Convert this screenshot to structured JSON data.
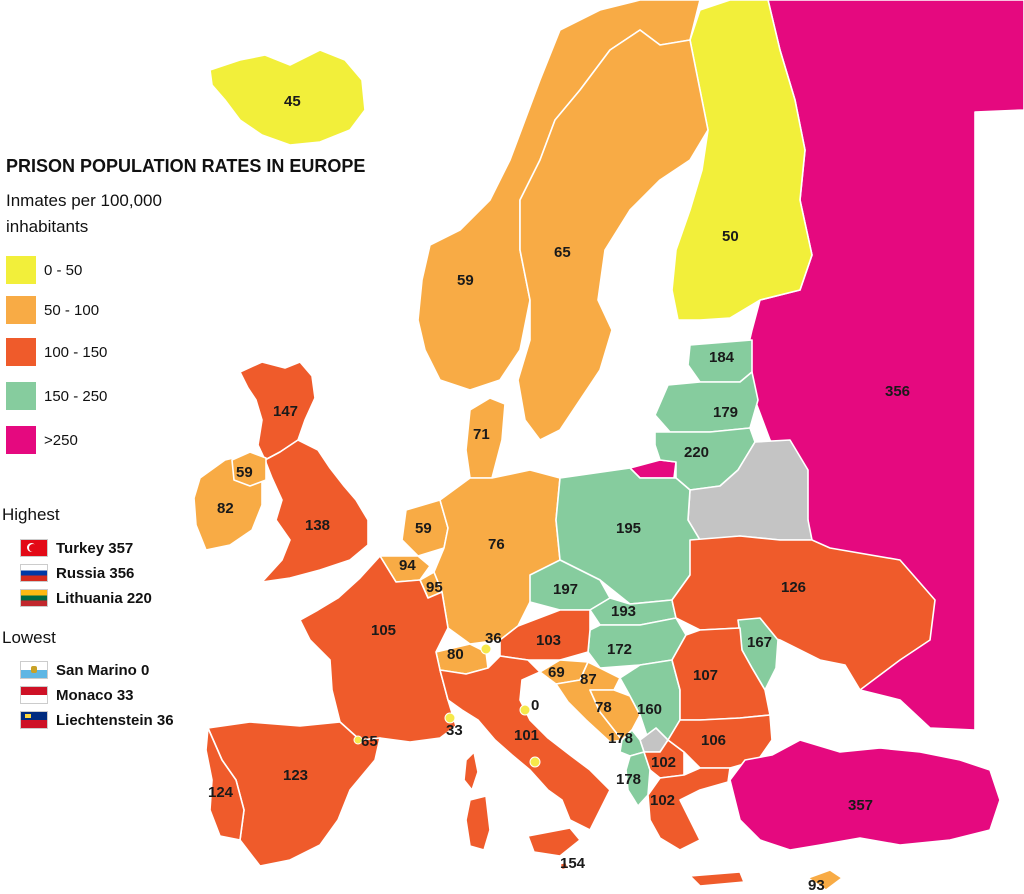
{
  "legend": {
    "title": "PRISON POPULATION RATES IN EUROPE",
    "subtitle": "Inmates per 100,000 inhabitants",
    "classes": [
      {
        "label": "0 - 50",
        "color": "#f2ef3a"
      },
      {
        "label": "50 - 100",
        "color": "#f8ab45"
      },
      {
        "label": "100 - 150",
        "color": "#ef5b2b"
      },
      {
        "label": "150 - 250",
        "color": "#86cc9e"
      },
      {
        "label": ">250",
        "color": "#e5097f"
      }
    ],
    "no_data_color": "#c4c4c4"
  },
  "highest": {
    "title": "Highest",
    "items": [
      {
        "country": "Turkey",
        "value": "357",
        "text": "Turkey 357"
      },
      {
        "country": "Russia",
        "value": "356",
        "text": "Russia 356"
      },
      {
        "country": "Lithuania",
        "value": "220",
        "text": "Lithuania 220"
      }
    ]
  },
  "lowest": {
    "title": "Lowest",
    "items": [
      {
        "country": "San Marino",
        "value": "0",
        "text": "San Marino 0"
      },
      {
        "country": "Monaco",
        "value": "33",
        "text": "Monaco 33"
      },
      {
        "country": "Liechtenstein",
        "value": "36",
        "text": "Liechtenstein 36"
      }
    ]
  },
  "map_values": {
    "iceland": "45",
    "norway": "59",
    "sweden": "65",
    "finland": "50",
    "russia": "356",
    "estonia": "184",
    "latvia": "179",
    "lithuania": "220",
    "denmark": "71",
    "scotland": "147",
    "northern_ireland": "59",
    "ireland": "82",
    "england": "138",
    "netherlands": "59",
    "belgium": "94",
    "luxembourg": "95",
    "germany": "76",
    "poland": "195",
    "czechia": "197",
    "slovakia": "193",
    "ukraine": "126",
    "moldova": "167",
    "hungary": "172",
    "austria": "103",
    "liechtenstein": "36",
    "switzerland": "80",
    "france": "105",
    "slovenia": "69",
    "croatia": "87",
    "bosnia": "78",
    "serbia": "160",
    "romania": "107",
    "bulgaria": "106",
    "montenegro": "178",
    "albania": "178",
    "north_macedonia": "102",
    "greece": "102",
    "turkey": "357",
    "cyprus": "93",
    "italy": "101",
    "san_marino": "0",
    "monaco": "33",
    "andorra": "65",
    "spain": "123",
    "portugal": "124",
    "malta": "154"
  }
}
